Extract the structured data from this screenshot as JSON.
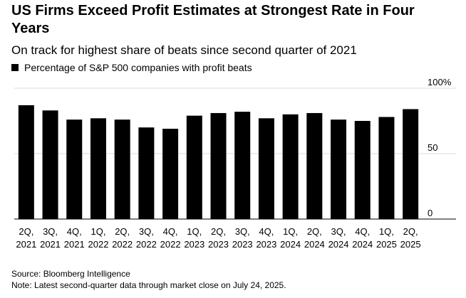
{
  "header": {
    "title": "US Firms Exceed Profit Estimates at Strongest Rate in Four Years",
    "subtitle": "On track for highest share of beats since second quarter of 2021"
  },
  "footer": {
    "source": "Source: Bloomberg Intelligence",
    "note": "Note: Latest second-quarter data through market close on July 24, 2025."
  },
  "colors": {
    "bar": "#000000",
    "grid": "#d9d9d9"
  },
  "chart_data": {
    "type": "bar",
    "title": "US Firms Exceed Profit Estimates at Strongest Rate in Four Years",
    "subtitle": "On track for highest share of beats since second quarter of 2021",
    "series": [
      {
        "name": "Percentage of S&P 500 companies with profit beats",
        "values": [
          87,
          83,
          76,
          77,
          76,
          70,
          69,
          79,
          81,
          82,
          77,
          80,
          81,
          76,
          75,
          78,
          84
        ]
      }
    ],
    "categories": [
      {
        "q": "2Q,",
        "y": "2021"
      },
      {
        "q": "3Q,",
        "y": "2021"
      },
      {
        "q": "4Q,",
        "y": "2021"
      },
      {
        "q": "1Q,",
        "y": "2022"
      },
      {
        "q": "2Q,",
        "y": "2022"
      },
      {
        "q": "3Q,",
        "y": "2022"
      },
      {
        "q": "4Q,",
        "y": "2022"
      },
      {
        "q": "1Q,",
        "y": "2023"
      },
      {
        "q": "2Q,",
        "y": "2023"
      },
      {
        "q": "3Q,",
        "y": "2023"
      },
      {
        "q": "4Q,",
        "y": "2023"
      },
      {
        "q": "1Q,",
        "y": "2024"
      },
      {
        "q": "2Q,",
        "y": "2024"
      },
      {
        "q": "3Q,",
        "y": "2024"
      },
      {
        "q": "4Q,",
        "y": "2024"
      },
      {
        "q": "1Q,",
        "y": "2025"
      },
      {
        "q": "2Q,",
        "y": "2025"
      }
    ],
    "ylim": [
      0,
      100
    ],
    "yticks": [
      {
        "value": 0,
        "label": "0"
      },
      {
        "value": 50,
        "label": "50"
      },
      {
        "value": 100,
        "label": "100%"
      }
    ],
    "grid": true,
    "legend_position": "top-left",
    "xlabel": "",
    "ylabel": ""
  }
}
